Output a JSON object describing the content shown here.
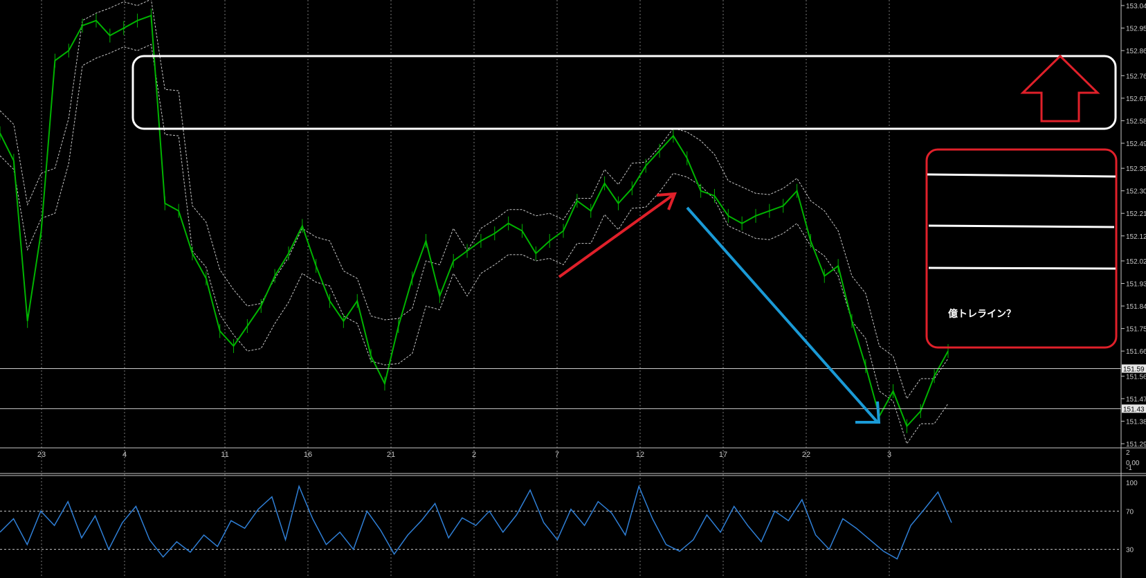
{
  "chart_data": [
    {
      "type": "line",
      "series": [
        {
          "values": [
            152.53,
            152.42,
            151.78,
            152.14,
            152.82,
            152.86,
            152.96,
            152.98,
            152.92,
            152.95,
            152.98,
            153.0,
            152.25,
            152.22,
            152.05,
            151.95,
            151.74,
            151.68,
            151.76,
            151.84,
            151.96,
            152.05,
            152.16,
            152.0,
            151.86,
            151.78,
            151.86,
            151.64,
            151.53,
            151.76,
            151.95,
            152.1,
            151.88,
            152.02,
            152.06,
            152.1,
            152.13,
            152.17,
            152.14,
            152.05,
            152.1,
            152.14,
            152.26,
            152.22,
            152.33,
            152.25,
            152.31,
            152.4,
            152.46,
            152.52,
            152.43,
            152.3,
            152.28,
            152.2,
            152.17,
            152.2,
            152.22,
            152.24,
            152.3,
            152.1,
            151.96,
            152.0,
            151.78,
            151.6,
            151.4,
            151.5,
            151.36,
            151.42,
            151.56,
            151.66
          ]
        }
      ],
      "ylim": [
        151.29,
        153.04
      ],
      "y_ticks": [
        "153.04",
        "152.95",
        "152.86",
        "152.76",
        "152.67",
        "152.58",
        "152.49",
        "152.39",
        "152.30",
        "152.21",
        "152.12",
        "152.02",
        "151.93",
        "151.84",
        "151.75",
        "151.66",
        "151.56",
        "151.47",
        "151.38",
        "151.29"
      ],
      "price_markers": [
        "151.59",
        "151.43"
      ],
      "x_ticks": [
        "23",
        "4",
        "11",
        "16",
        "21",
        "2",
        "7",
        "12",
        "17",
        "22",
        "3"
      ],
      "grid": true,
      "colors": {
        "price": "#00b400",
        "envelope": "#c8c8c8",
        "zone_box": "#ffffff",
        "arrow_up": "#e0202a",
        "arrow_down": "#1a9ad6",
        "note_box": "#e0202a"
      }
    },
    {
      "type": "line",
      "series": [
        {
          "values": [
            48,
            62,
            35,
            70,
            55,
            80,
            42,
            65,
            30,
            58,
            75,
            40,
            22,
            38,
            27,
            45,
            33,
            60,
            52,
            72,
            85,
            40,
            96,
            62,
            35,
            48,
            30,
            70,
            50,
            25,
            45,
            60,
            78,
            42,
            63,
            55,
            70,
            48,
            66,
            92,
            58,
            40,
            72,
            55,
            80,
            68,
            45,
            96,
            62,
            35,
            28,
            40,
            66,
            48,
            75,
            55,
            38,
            70,
            60,
            82,
            45,
            30,
            62,
            52,
            40,
            28,
            20,
            55,
            72,
            90,
            58
          ]
        }
      ],
      "ylim": [
        0,
        100
      ],
      "y_ticks": [
        "100",
        "70",
        "30"
      ],
      "levels": [
        70,
        30
      ],
      "colors": {
        "line": "#2f7fd6"
      }
    }
  ],
  "sub_axis_labels": [
    "2",
    "0.00",
    "-1"
  ],
  "annotation": {
    "note_text": "億トレライン？"
  }
}
